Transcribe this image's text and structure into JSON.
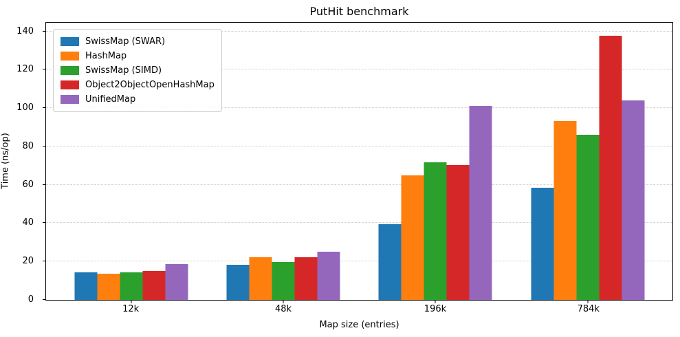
{
  "chart_data": {
    "type": "bar",
    "title": "PutHit benchmark",
    "xlabel": "Map size (entries)",
    "ylabel": "Time (ns/op)",
    "categories": [
      "12k",
      "48k",
      "196k",
      "784k"
    ],
    "series": [
      {
        "name": "SwissMap (SWAR)",
        "color": "#1f77b4",
        "values": [
          14.5,
          18.2,
          39.3,
          58.3
        ]
      },
      {
        "name": "HashMap",
        "color": "#ff7f0e",
        "values": [
          13.5,
          22.2,
          64.8,
          93.3
        ]
      },
      {
        "name": "SwissMap (SIMD)",
        "color": "#2ca02c",
        "values": [
          14.2,
          19.7,
          71.7,
          86.2
        ]
      },
      {
        "name": "Object2ObjectOpenHashMap",
        "color": "#d62728",
        "values": [
          15.0,
          22.3,
          70.3,
          137.7
        ]
      },
      {
        "name": "UnifiedMap",
        "color": "#9467bd",
        "values": [
          18.5,
          25.0,
          101.0,
          104.0
        ]
      }
    ],
    "yticks": [
      0,
      20,
      40,
      60,
      80,
      100,
      120,
      140
    ],
    "ylim": [
      0,
      144.5
    ],
    "grid": "horizontal-dashed",
    "grid_color": "#d4d4d4",
    "legend_position": "upper-left",
    "spine_color": "#000000",
    "background_color": "#ffffff"
  }
}
